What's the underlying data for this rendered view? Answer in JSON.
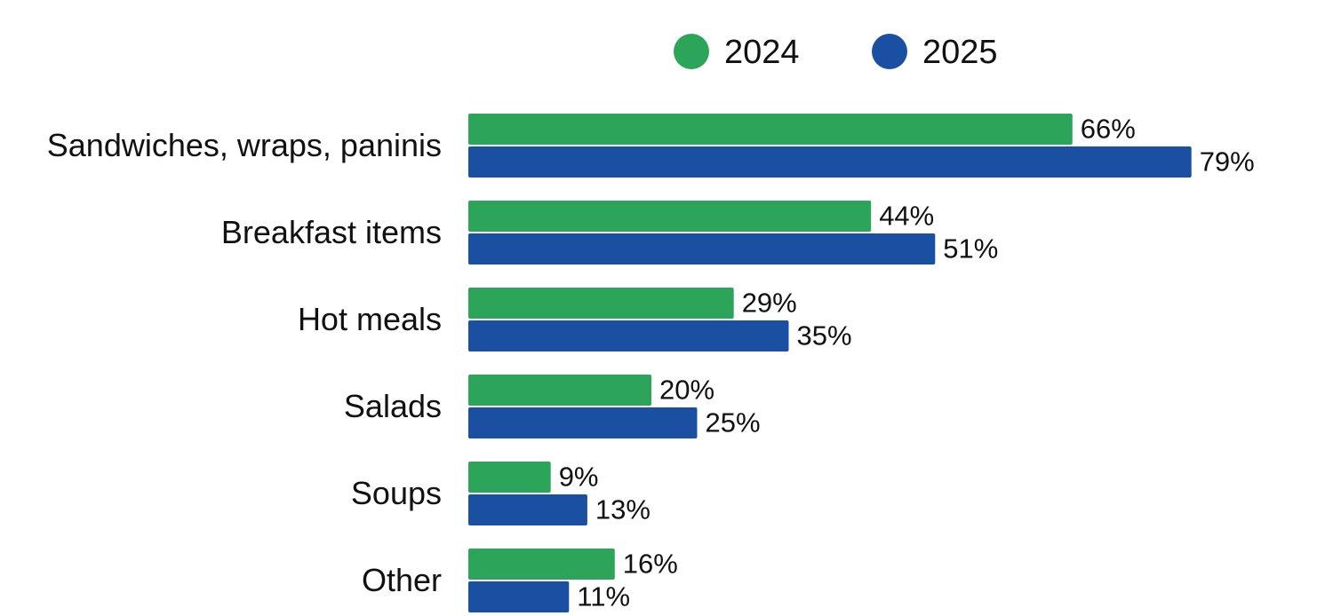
{
  "chart_data": {
    "type": "bar",
    "orientation": "horizontal",
    "title": "",
    "xlabel": "",
    "ylabel": "",
    "xlim": [
      0,
      100
    ],
    "grid": false,
    "legend_position": "top",
    "categories": [
      "Sandwiches, wraps, paninis",
      "Breakfast items",
      "Hot meals",
      "Salads",
      "Soups",
      "Other"
    ],
    "series": [
      {
        "name": "2024",
        "color": "#2ca55a",
        "values": [
          66,
          44,
          29,
          20,
          9,
          16
        ],
        "labels": [
          "66%",
          "44%",
          "29%",
          "20%",
          "9%",
          "16%"
        ]
      },
      {
        "name": "2025",
        "color": "#1a4fa1",
        "values": [
          79,
          51,
          35,
          25,
          13,
          11
        ],
        "labels": [
          "79%",
          "51%",
          "35%",
          "25%",
          "13%",
          "11%"
        ]
      }
    ]
  }
}
